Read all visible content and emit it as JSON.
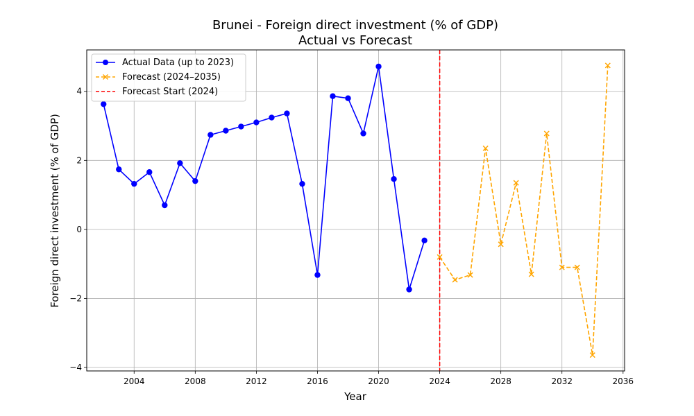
{
  "chart_data": {
    "type": "line",
    "title": "Brunei - Foreign direct investment (% of GDP)",
    "subtitle": "Actual vs Forecast",
    "xlabel": "Year",
    "ylabel": "Foreign direct investment (% of GDP)",
    "xlim": [
      2000.9,
      2036.1
    ],
    "ylim": [
      -4.1,
      5.2
    ],
    "x_ticks": [
      2004,
      2008,
      2012,
      2016,
      2020,
      2024,
      2028,
      2032,
      2036
    ],
    "y_ticks": [
      -4,
      -2,
      0,
      2,
      4
    ],
    "grid": true,
    "legend_position": "top-left",
    "series": [
      {
        "name": "Actual Data (up to 2023)",
        "color": "#0000ff",
        "line_style": "solid",
        "marker": "circle",
        "x": [
          2002,
          2003,
          2004,
          2005,
          2006,
          2007,
          2008,
          2009,
          2010,
          2011,
          2012,
          2013,
          2014,
          2015,
          2016,
          2017,
          2018,
          2019,
          2020,
          2021,
          2022,
          2023
        ],
        "values": [
          3.63,
          1.74,
          1.32,
          1.66,
          0.7,
          1.92,
          1.4,
          2.74,
          2.86,
          2.98,
          3.1,
          3.24,
          3.36,
          1.32,
          -1.32,
          3.86,
          3.8,
          2.78,
          4.72,
          1.46,
          -1.74,
          -0.32
        ]
      },
      {
        "name": "Forecast (2024–2035)",
        "color": "#ffa500",
        "line_style": "dashed",
        "marker": "x",
        "x": [
          2024,
          2025,
          2026,
          2027,
          2028,
          2029,
          2030,
          2031,
          2032,
          2033,
          2034,
          2035
        ],
        "values": [
          -0.8,
          -1.46,
          -1.32,
          2.35,
          -0.43,
          1.35,
          -1.3,
          2.78,
          -1.1,
          -1.1,
          -3.64,
          4.75
        ]
      }
    ],
    "annotations": [
      {
        "type": "vline",
        "x": 2024,
        "name": "Forecast Start (2024)",
        "color": "#ff0000",
        "line_style": "dashed"
      }
    ]
  }
}
